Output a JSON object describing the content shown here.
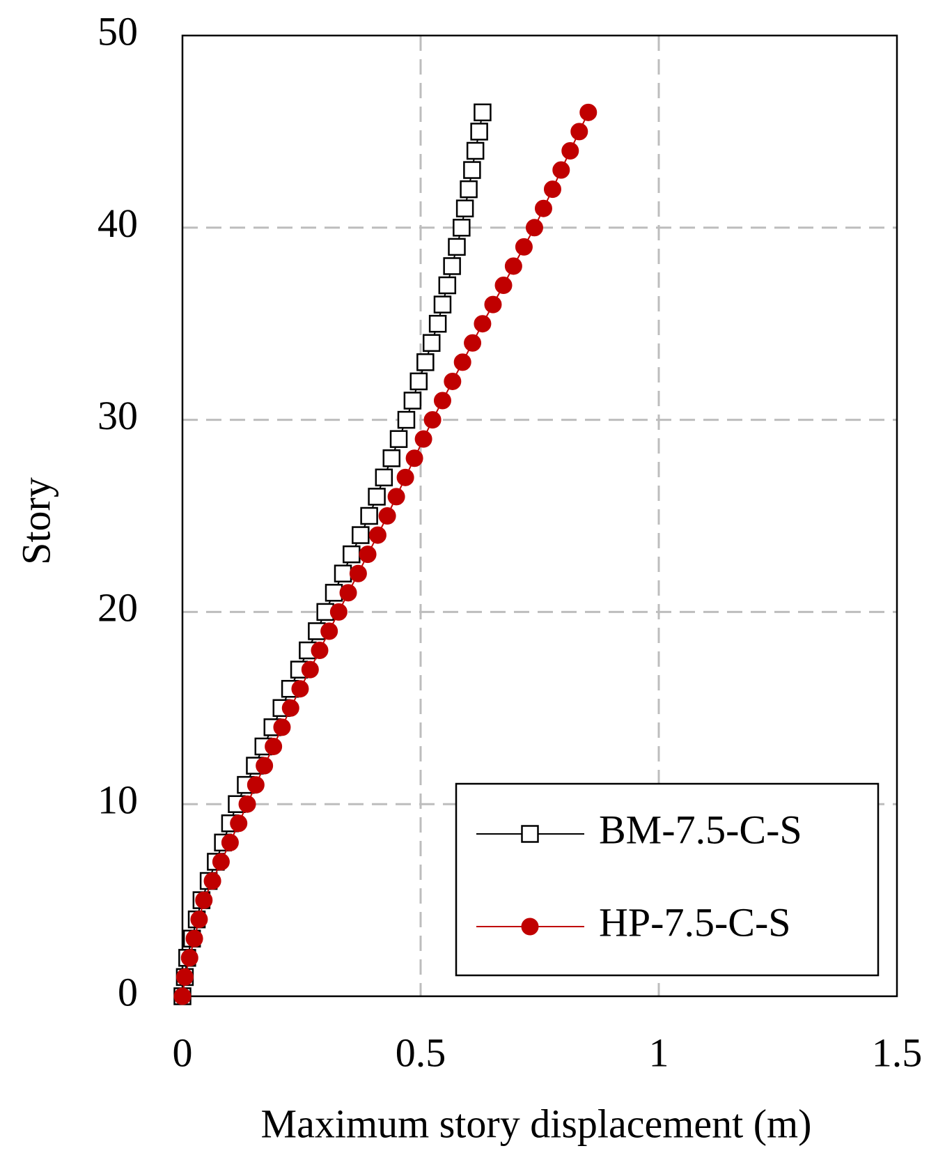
{
  "chart_data": {
    "type": "line",
    "xlabel": "Maximum story displacement (m)",
    "ylabel": "Story",
    "y": [
      0,
      1,
      2,
      3,
      4,
      5,
      6,
      7,
      8,
      9,
      10,
      11,
      12,
      13,
      14,
      15,
      16,
      17,
      18,
      19,
      20,
      21,
      22,
      23,
      24,
      25,
      26,
      27,
      28,
      29,
      30,
      31,
      32,
      33,
      34,
      35,
      36,
      37,
      38,
      39,
      40,
      41,
      42,
      43,
      44,
      45,
      46
    ],
    "series": [
      {
        "name": "BM-7.5-C-S",
        "color": "#000000",
        "marker": "square",
        "x": [
          0,
          0.005,
          0.01,
          0.02,
          0.03,
          0.04,
          0.055,
          0.07,
          0.085,
          0.1,
          0.114,
          0.133,
          0.152,
          0.17,
          0.189,
          0.208,
          0.226,
          0.245,
          0.263,
          0.282,
          0.3,
          0.318,
          0.337,
          0.355,
          0.374,
          0.392,
          0.408,
          0.423,
          0.439,
          0.454,
          0.47,
          0.483,
          0.496,
          0.51,
          0.523,
          0.536,
          0.546,
          0.556,
          0.566,
          0.576,
          0.586,
          0.593,
          0.601,
          0.608,
          0.615,
          0.623,
          0.63
        ]
      },
      {
        "name": "HP-7.5-C-S",
        "color": "#c00000",
        "marker": "circle",
        "x": [
          0,
          0.005,
          0.015,
          0.025,
          0.035,
          0.045,
          0.063,
          0.081,
          0.1,
          0.118,
          0.136,
          0.154,
          0.172,
          0.191,
          0.209,
          0.227,
          0.247,
          0.268,
          0.288,
          0.308,
          0.328,
          0.348,
          0.369,
          0.389,
          0.41,
          0.43,
          0.449,
          0.468,
          0.487,
          0.506,
          0.525,
          0.546,
          0.567,
          0.588,
          0.609,
          0.63,
          0.652,
          0.674,
          0.695,
          0.717,
          0.739,
          0.758,
          0.777,
          0.795,
          0.814,
          0.833,
          0.852
        ]
      }
    ],
    "xlim": [
      0,
      1.5
    ],
    "xticks": [
      0,
      0.5,
      1,
      1.5
    ],
    "ylim": [
      0,
      50
    ],
    "yticks": [
      0,
      10,
      20,
      30,
      40,
      50
    ],
    "grid": true,
    "legend": "lower right"
  }
}
